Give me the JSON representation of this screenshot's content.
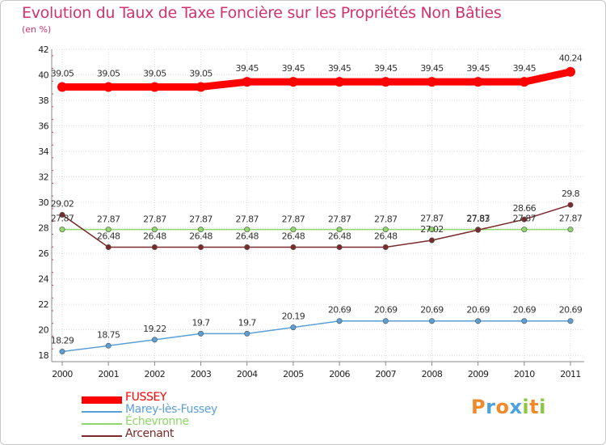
{
  "chart_data": {
    "type": "line",
    "title": "Evolution du Taux de Taxe Foncière sur les Propriétés Non Bâties",
    "ylabel": "(en %)",
    "xlabel": "",
    "ylim": [
      17.5,
      42
    ],
    "yticks": [
      18,
      20,
      22,
      24,
      26,
      28,
      30,
      32,
      34,
      36,
      38,
      40,
      42
    ],
    "categories": [
      "2000",
      "2001",
      "2002",
      "2003",
      "2004",
      "2005",
      "2006",
      "2007",
      "2008",
      "2009",
      "2010",
      "2011"
    ],
    "grid": true,
    "legend_position": "bottom-left",
    "series": [
      {
        "name": "FUSSEY",
        "color": "#ff0000",
        "values": [
          39.05,
          39.05,
          39.05,
          39.05,
          39.45,
          39.45,
          39.45,
          39.45,
          39.45,
          39.45,
          39.45,
          40.24
        ],
        "labels": [
          "39.05",
          "39.05",
          "39.05",
          "39.05",
          "39.45",
          "39.45",
          "39.45",
          "39.45",
          "39.45",
          "39.45",
          "39.45",
          "40.24"
        ]
      },
      {
        "name": "Marey-lès-Fussey",
        "color": "#5b9fd6",
        "values": [
          18.29,
          18.75,
          19.22,
          19.7,
          19.7,
          20.19,
          20.69,
          20.69,
          20.69,
          20.69,
          20.69,
          20.69
        ],
        "labels": [
          "18.29",
          "18.75",
          "19.22",
          "19.7",
          "19.7",
          "20.19",
          "20.69",
          "20.69",
          "20.69",
          "20.69",
          "20.69",
          "20.69"
        ]
      },
      {
        "name": "Échevronne",
        "color": "#8fd66b",
        "values": [
          27.87,
          27.87,
          27.87,
          27.87,
          27.87,
          27.87,
          27.87,
          27.87,
          27.87,
          27.87,
          27.87,
          27.87
        ],
        "labels": [
          "27.87",
          "27.87",
          "27.87",
          "27.87",
          "27.87",
          "27.87",
          "27.87",
          "27.87",
          "27.87",
          "27.87",
          "27.87",
          "27.87"
        ]
      },
      {
        "name": "Arcenant",
        "color": "#7a2a2a",
        "values": [
          29.02,
          26.48,
          26.48,
          26.48,
          26.48,
          26.48,
          26.48,
          26.48,
          27.02,
          27.83,
          28.66,
          29.8
        ],
        "labels": [
          "29.02",
          "26.48",
          "26.48",
          "26.48",
          "26.48",
          "26.48",
          "26.48",
          "26.48",
          "27.02",
          "27.83",
          "28.66",
          "29.8"
        ]
      }
    ]
  },
  "branding": {
    "letters": [
      "P",
      "r",
      "o",
      "x",
      "i",
      "t",
      "i"
    ],
    "colors": [
      "#f08a2a",
      "#4aa3df",
      "#f08a2a",
      "#4aa3df",
      "#8cc63f",
      "#f08a2a",
      "#8cc63f"
    ]
  }
}
